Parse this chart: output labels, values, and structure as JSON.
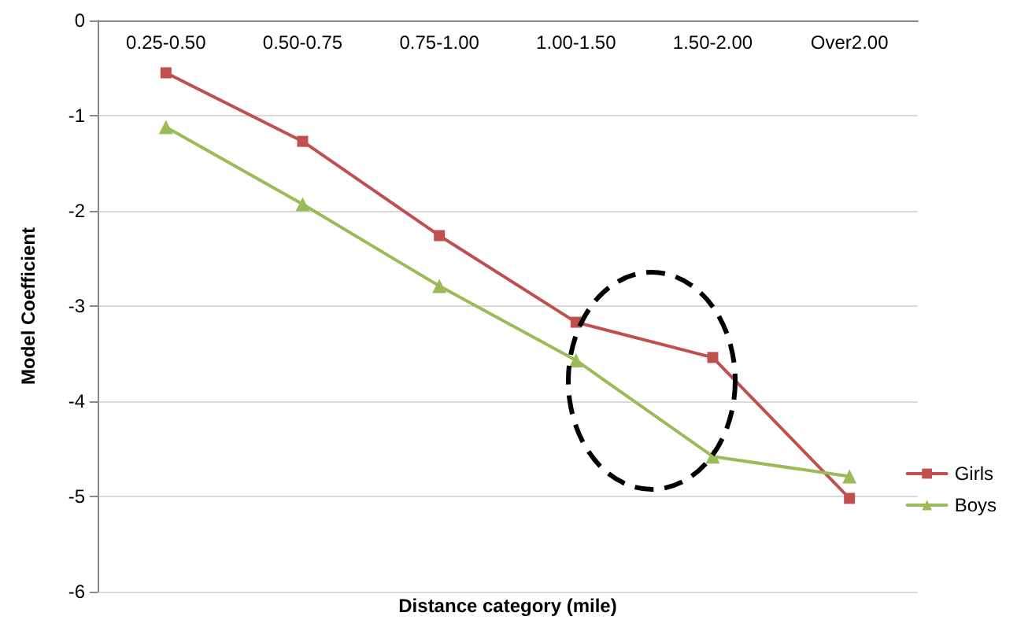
{
  "chart_data": {
    "type": "line",
    "xlabel": "Distance category (mile)",
    "ylabel": "Model Coefficient",
    "categories": [
      "0.25-0.50",
      "0.50-0.75",
      "0.75-1.00",
      "1.00-1.50",
      "1.50-2.00",
      "Over2.00"
    ],
    "series": [
      {
        "name": "Girls",
        "color": "#c0504d",
        "marker": "square",
        "values": [
          -0.55,
          -1.27,
          -2.26,
          -3.17,
          -3.54,
          -5.02
        ]
      },
      {
        "name": "Boys",
        "color": "#9bbb59",
        "marker": "triangle",
        "values": [
          -1.12,
          -1.93,
          -2.79,
          -3.57,
          -4.58,
          -4.79
        ]
      }
    ],
    "ylim": [
      -6,
      0
    ],
    "yticks": [
      -6,
      -5,
      -4,
      -3,
      -2,
      -1,
      0
    ],
    "grid": "y",
    "legend": "right",
    "line_style": "solid"
  }
}
